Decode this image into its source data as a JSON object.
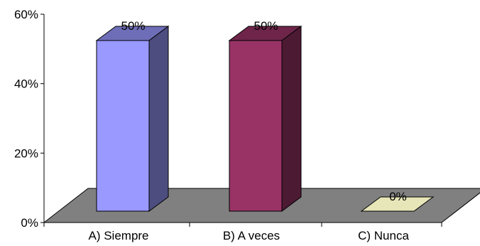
{
  "chart_data": {
    "type": "bar",
    "style": "3d-column",
    "categories": [
      "A) Siempre",
      "B) A veces",
      "C) Nunca"
    ],
    "values": [
      50,
      50,
      0
    ],
    "value_labels": [
      "50%",
      "50%",
      "0%"
    ],
    "ylim": [
      0,
      60
    ],
    "yticks": [
      {
        "value": 0,
        "label": "0%"
      },
      {
        "value": 20,
        "label": "20%"
      },
      {
        "value": 40,
        "label": "40%"
      },
      {
        "value": 60,
        "label": "60%"
      }
    ],
    "colors": {
      "bars": [
        "#9999ff",
        "#993366",
        "#ffffcc"
      ],
      "floor": "#808080",
      "axis": "#000000"
    },
    "grid": false,
    "legend": "none"
  }
}
